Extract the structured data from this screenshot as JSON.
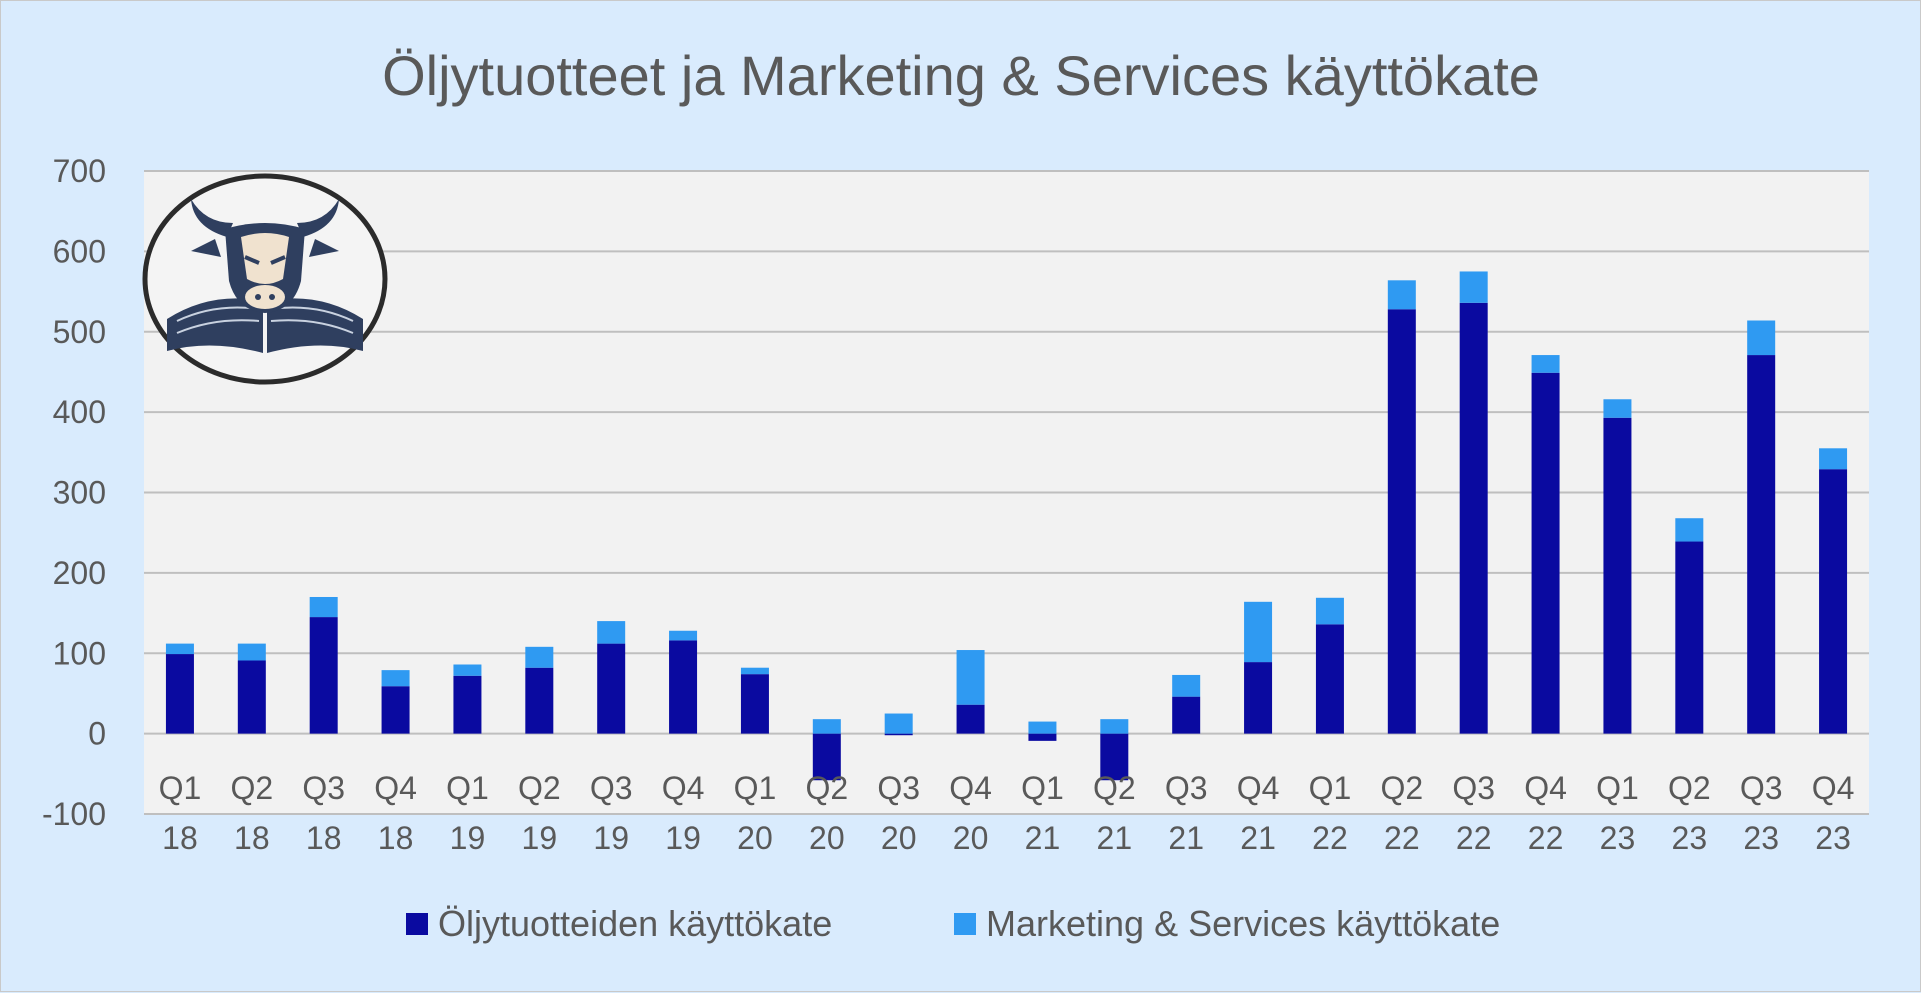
{
  "chart_data": {
    "type": "bar",
    "stacked": true,
    "title": "Öljytuotteet ja Marketing & Services käyttökate",
    "xlabel": "",
    "ylabel": "",
    "ylim": [
      -100,
      700
    ],
    "yticks": [
      -100,
      0,
      100,
      200,
      300,
      400,
      500,
      600,
      700
    ],
    "grid": true,
    "legend_position": "bottom",
    "categories": [
      [
        "Q1",
        "18"
      ],
      [
        "Q2",
        "18"
      ],
      [
        "Q3",
        "18"
      ],
      [
        "Q4",
        "18"
      ],
      [
        "Q1",
        "19"
      ],
      [
        "Q2",
        "19"
      ],
      [
        "Q3",
        "19"
      ],
      [
        "Q4",
        "19"
      ],
      [
        "Q1",
        "20"
      ],
      [
        "Q2",
        "20"
      ],
      [
        "Q3",
        "20"
      ],
      [
        "Q4",
        "20"
      ],
      [
        "Q1",
        "21"
      ],
      [
        "Q2",
        "21"
      ],
      [
        "Q3",
        "21"
      ],
      [
        "Q4",
        "21"
      ],
      [
        "Q1",
        "22"
      ],
      [
        "Q2",
        "22"
      ],
      [
        "Q3",
        "22"
      ],
      [
        "Q4",
        "22"
      ],
      [
        "Q1",
        "23"
      ],
      [
        "Q2",
        "23"
      ],
      [
        "Q3",
        "23"
      ],
      [
        "Q4",
        "23"
      ]
    ],
    "series": [
      {
        "name": "Öljytuotteiden käyttökate",
        "color": "#0a0aa0",
        "values": [
          99,
          91,
          145,
          59,
          72,
          82,
          112,
          116,
          74,
          -58,
          -2,
          36,
          -9,
          -58,
          46,
          89,
          136,
          528,
          536,
          449,
          393,
          239,
          471,
          329
        ]
      },
      {
        "name": "Marketing & Services käyttökate",
        "color": "#2f9af2",
        "values": [
          13,
          21,
          25,
          20,
          14,
          26,
          28,
          12,
          8,
          18,
          25,
          68,
          15,
          18,
          27,
          75,
          33,
          36,
          39,
          22,
          23,
          29,
          43,
          26
        ]
      }
    ]
  },
  "logo": {
    "description_icon": "bull-reading-book-icon"
  },
  "colors": {
    "background": "#d9ebfd",
    "plot_background": "#f2f2f2",
    "gridline": "#bfbfbf",
    "text": "#595959"
  }
}
